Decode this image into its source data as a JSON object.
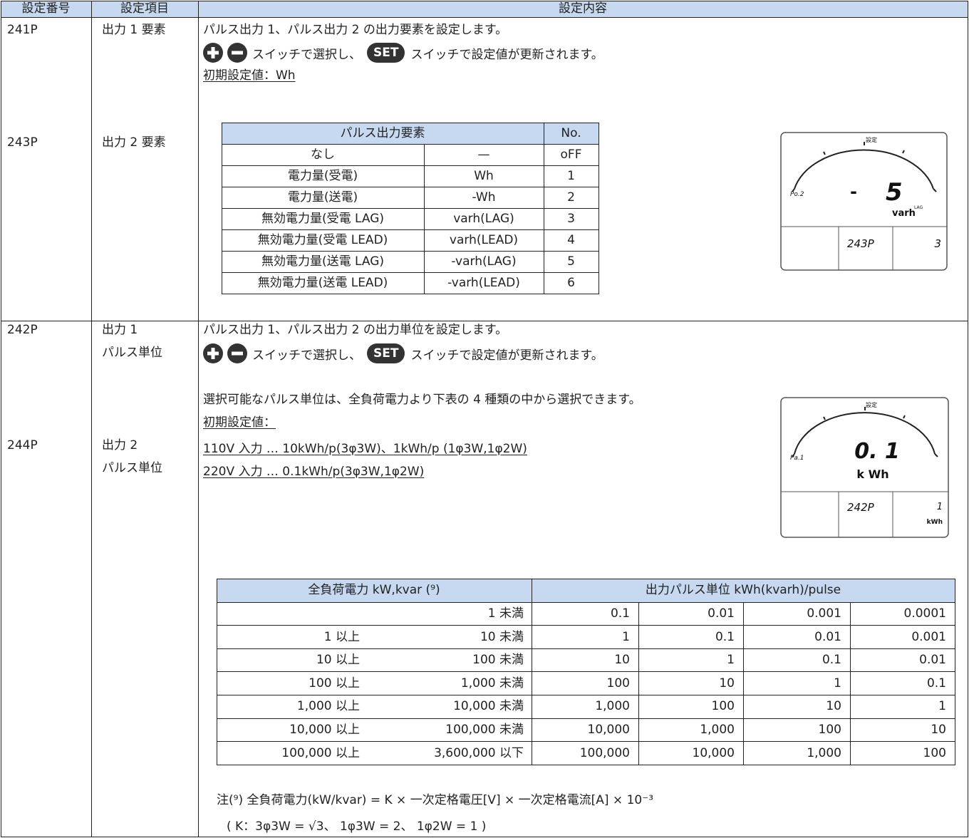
{
  "header": {
    "number": "設定番号",
    "item": "設定項目",
    "content": "設定内容"
  },
  "rows": [
    {
      "number_1": "241P",
      "number_2": "243P",
      "item_1": [
        "出力 1 要素"
      ],
      "item_2": [
        "出力 2 要素"
      ],
      "description": "パルス出力 1、パルス出力 2 の出力要素を設定します。",
      "select": "スイッチで選択し、",
      "set": "SET",
      "update": "スイッチで設定値が更新されます。",
      "default": "初期設定値：Wh",
      "table": {
        "header": [
          "パルス出力要素",
          "No."
        ],
        "rows": [
          [
            "なし",
            "—",
            "oFF"
          ],
          [
            "電力量(受電)",
            "Wh",
            "1"
          ],
          [
            "電力量(送電)",
            "-Wh",
            "2"
          ],
          [
            "無効電力量(受電 LAG)",
            "varh(LAG)",
            "3"
          ],
          [
            "無効電力量(受電 LEAD)",
            "varh(LEAD)",
            "4"
          ],
          [
            "無効電力量(送電 LAG)",
            "-varh(LAG)",
            "5"
          ],
          [
            "無効電力量(送電 LEAD)",
            "-varh(LEAD)",
            "6"
          ]
        ]
      },
      "display": {
        "label": "設定",
        "channel": "Po.2",
        "sign": "-",
        "value": "5",
        "unit": "varh",
        "unit_sup": "LAG",
        "code": "243P",
        "setting": "3"
      }
    },
    {
      "number_1": "242P",
      "number_2": "244P",
      "item_1": [
        "出力 1",
        "パルス単位"
      ],
      "item_2": [
        "出力 2",
        "パルス単位"
      ],
      "description": "パルス出力 1、パルス出力 2 の出力単位を設定します。",
      "select": "スイッチで選択し、",
      "set": "SET",
      "update": "スイッチで設定値が更新されます。",
      "choice": "選択可能なパルス単位は、全負荷電力より下表の 4 種類の中から選択できます。",
      "default": "初期設定値：",
      "default_lines": [
        "110V 入力 … 10kWh/p(3φ3W)、1kWh/p (1φ3W,1φ2W)",
        "220V 入力 … 0.1kWh/p(3φ3W,1φ2W)"
      ],
      "display": {
        "label": "設定",
        "channel": "Pa.1",
        "value": "0. 1",
        "unit": "k Wh",
        "code": "242P",
        "setting": "1",
        "setting_unit": "kWh"
      },
      "table": {
        "header": [
          "全負荷電力 kW,kvar (⁹)",
          "出力パルス単位 kWh(kvarh)/pulse"
        ],
        "rows": [
          [
            null,
            "1 未満",
            "0.1",
            "0.01",
            "0.001",
            "0.0001"
          ],
          [
            "1 以上",
            "10 未満",
            "1",
            "0.1",
            "0.01",
            "0.001"
          ],
          [
            "10 以上",
            "100 未満",
            "10",
            "1",
            "0.1",
            "0.01"
          ],
          [
            "100 以上",
            "1,000 未満",
            "100",
            "10",
            "1",
            "0.1"
          ],
          [
            "1,000 以上",
            "10,000 未満",
            "1,000",
            "100",
            "10",
            "1"
          ],
          [
            "10,000 以上",
            "100,000 未満",
            "10,000",
            "1,000",
            "100",
            "10"
          ],
          [
            "100,000 以上",
            "3,600,000 以下",
            "100,000",
            "10,000",
            "1,000",
            "100"
          ]
        ]
      },
      "notes": [
        "注(⁹) 全負荷電力(kW/kvar) = K × 一次定格電圧[V] × 一次定格電流[A] × 10⁻³",
        "( K：3φ3W = √3、 1φ3W = 2、 1φ2W = 1 )"
      ]
    }
  ]
}
